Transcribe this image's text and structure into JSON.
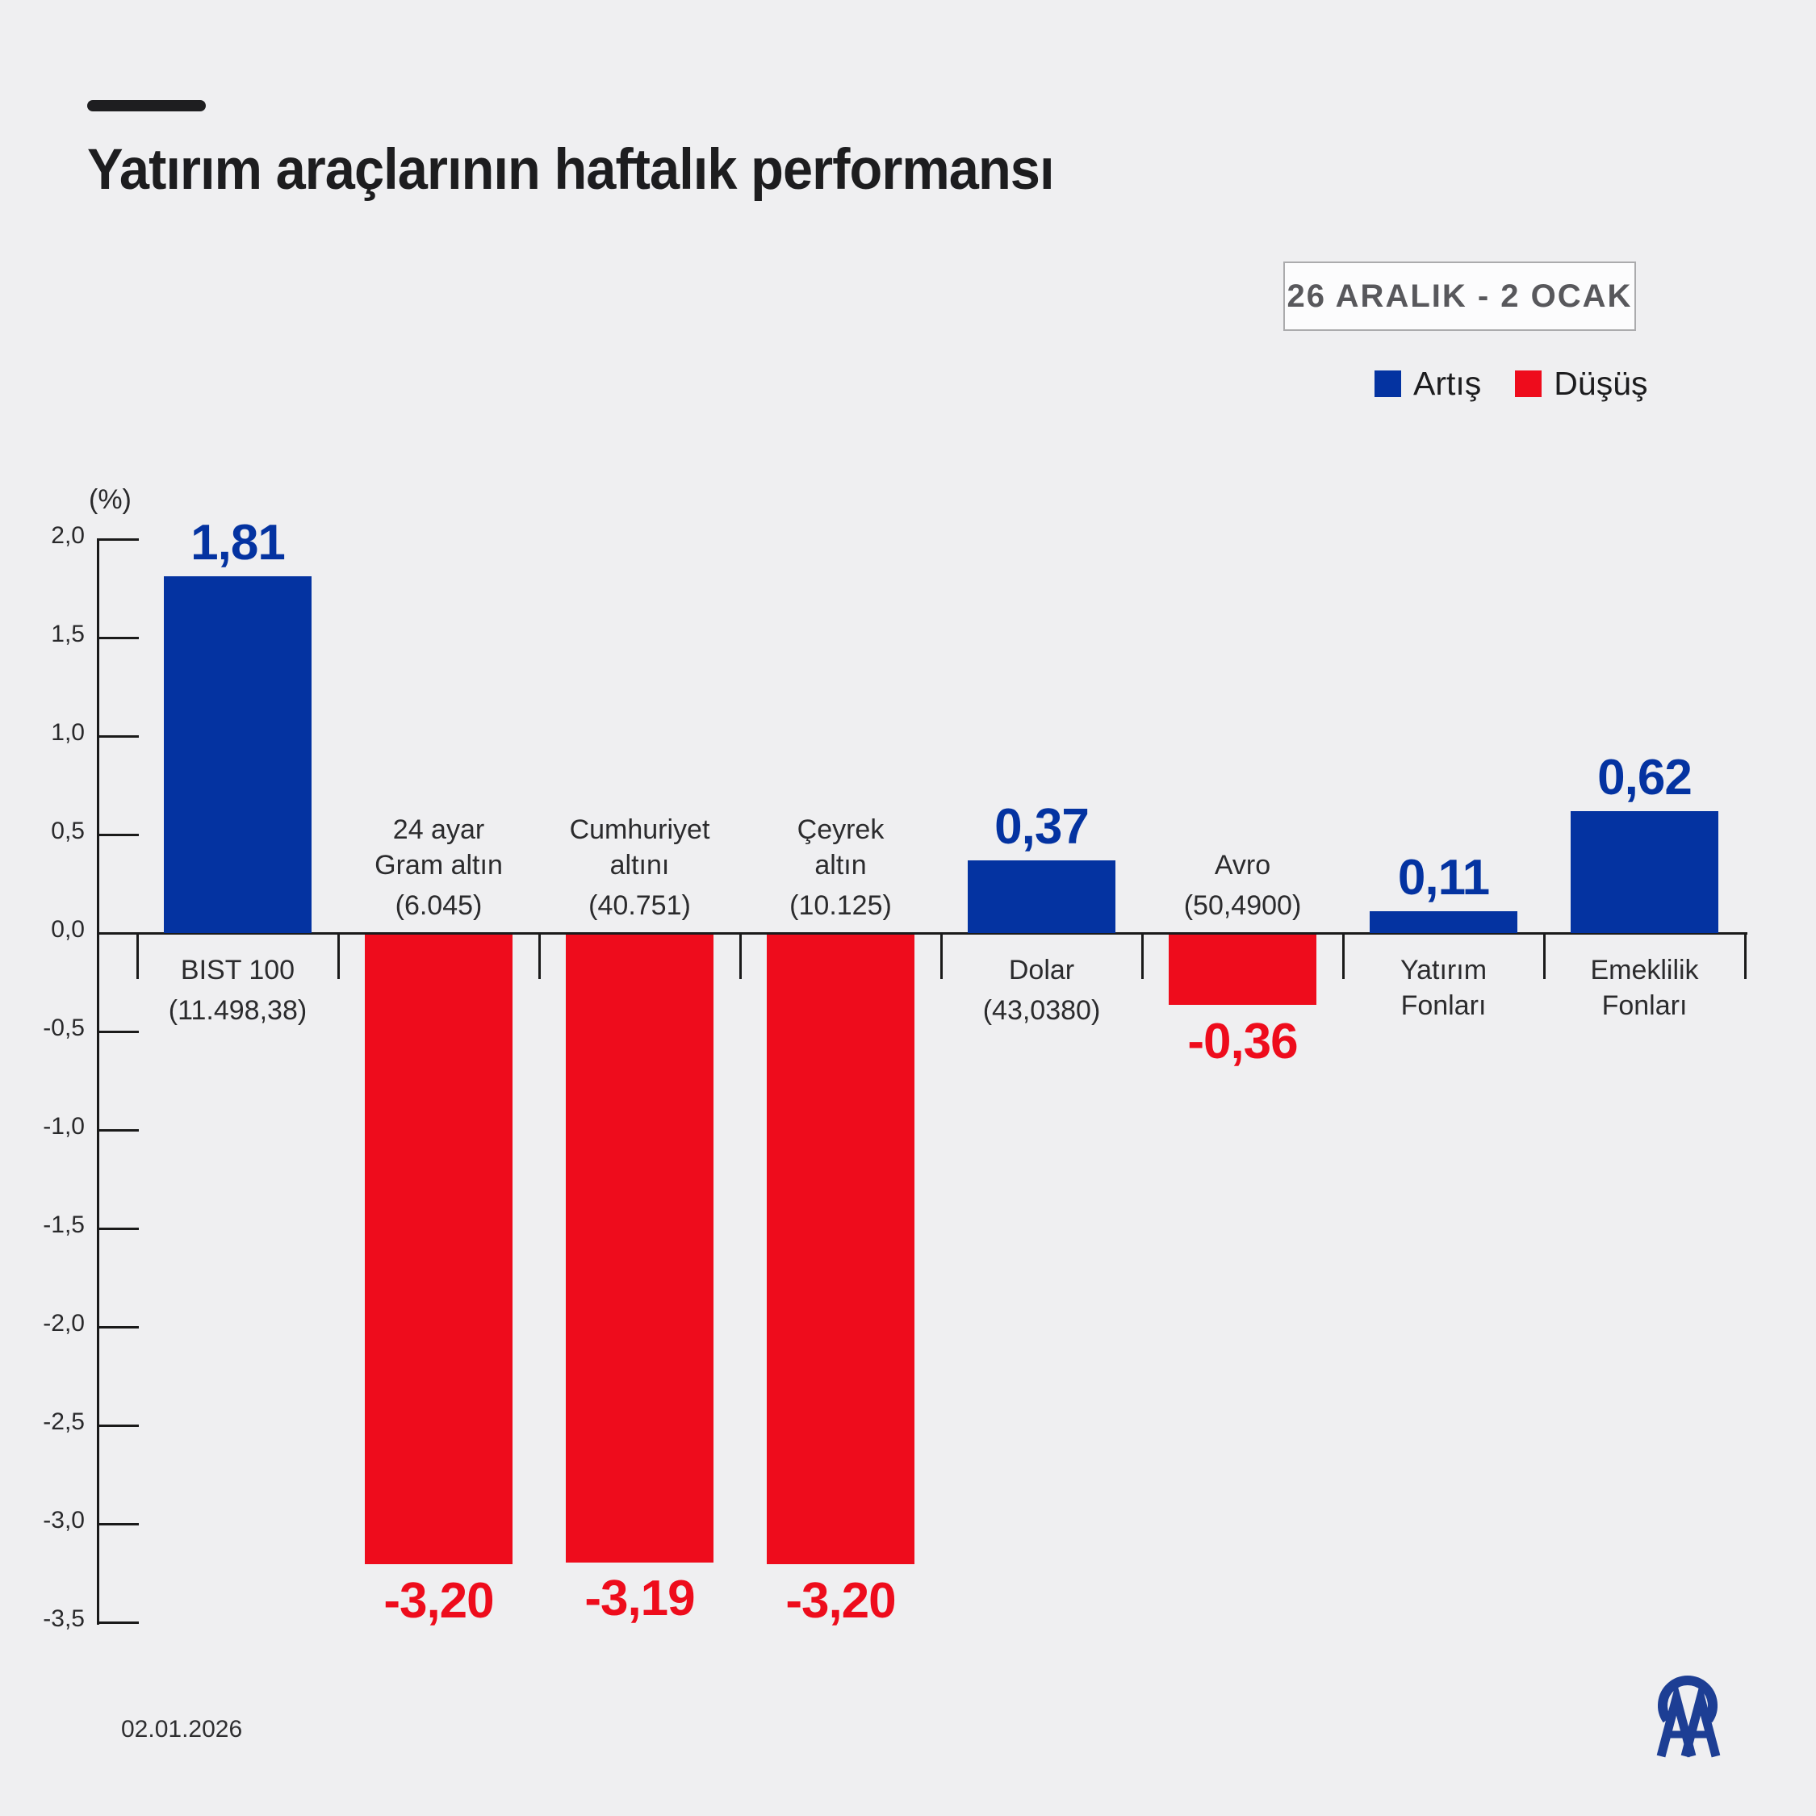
{
  "header": {
    "title": "Yatırım araçlarının haftalık performansı",
    "date_range": "26 ARALIK - 2 OCAK"
  },
  "legend": {
    "items": [
      {
        "label": "Artış",
        "color": "#0433a1",
        "meaning": "increase"
      },
      {
        "label": "Düşüş",
        "color": "#ee0c1c",
        "meaning": "decrease"
      }
    ]
  },
  "colors": {
    "background": "#efeff1",
    "increase": "#0433a1",
    "decrease": "#ee0c1c",
    "title_text": "#1d1d1f",
    "axis": "#1a1a1a",
    "muted_text": "#58585c",
    "logo_blue": "#1d3e94"
  },
  "footer": {
    "date": "02.01.2026",
    "logo": "anadolu-ajansi-aa-logo"
  },
  "chart_data": {
    "type": "bar",
    "title": "Yatırım araçlarının haftalık performansı",
    "subtitle_period": "26 ARALIK - 2 OCAK",
    "unit_label": "(%)",
    "ylabel": "(%)",
    "ylim": [
      -3.5,
      2.0
    ],
    "grid": false,
    "legend_position": "top-right",
    "y_ticks": [
      {
        "label": "2,0",
        "value": 2.0
      },
      {
        "label": "1,5",
        "value": 1.5
      },
      {
        "label": "1,0",
        "value": 1.0
      },
      {
        "label": "0,5",
        "value": 0.5
      },
      {
        "label": "0,0",
        "value": 0.0
      },
      {
        "label": "-0,5",
        "value": -0.5
      },
      {
        "label": "-1,0",
        "value": -1.0
      },
      {
        "label": "-1,5",
        "value": -1.5
      },
      {
        "label": "-2,0",
        "value": -2.0
      },
      {
        "label": "-2,5",
        "value": -2.5
      },
      {
        "label": "-3,0",
        "value": -3.0
      },
      {
        "label": "-3,5",
        "value": -3.5
      }
    ],
    "categories": [
      {
        "label_lines": [
          "BIST 100",
          "(11.498,38)"
        ],
        "value": 1.81,
        "value_label": "1,81",
        "direction": "up"
      },
      {
        "label_lines": [
          "24 ayar",
          "Gram altın",
          "(6.045)"
        ],
        "value": -3.2,
        "value_label": "-3,20",
        "direction": "down"
      },
      {
        "label_lines": [
          "Cumhuriyet",
          "altını",
          "(40.751)"
        ],
        "value": -3.19,
        "value_label": "-3,19",
        "direction": "down"
      },
      {
        "label_lines": [
          "Çeyrek",
          "altın",
          "(10.125)"
        ],
        "value": -3.2,
        "value_label": "-3,20",
        "direction": "down"
      },
      {
        "label_lines": [
          "Dolar",
          "(43,0380)"
        ],
        "value": 0.37,
        "value_label": "0,37",
        "direction": "up"
      },
      {
        "label_lines": [
          "Avro",
          "(50,4900)"
        ],
        "value": -0.36,
        "value_label": "-0,36",
        "direction": "down"
      },
      {
        "label_lines": [
          "Yatırım",
          "Fonları"
        ],
        "value": 0.11,
        "value_label": "0,11",
        "direction": "up"
      },
      {
        "label_lines": [
          "Emeklilik",
          "Fonları"
        ],
        "value": 0.62,
        "value_label": "0,62",
        "direction": "up"
      }
    ]
  }
}
